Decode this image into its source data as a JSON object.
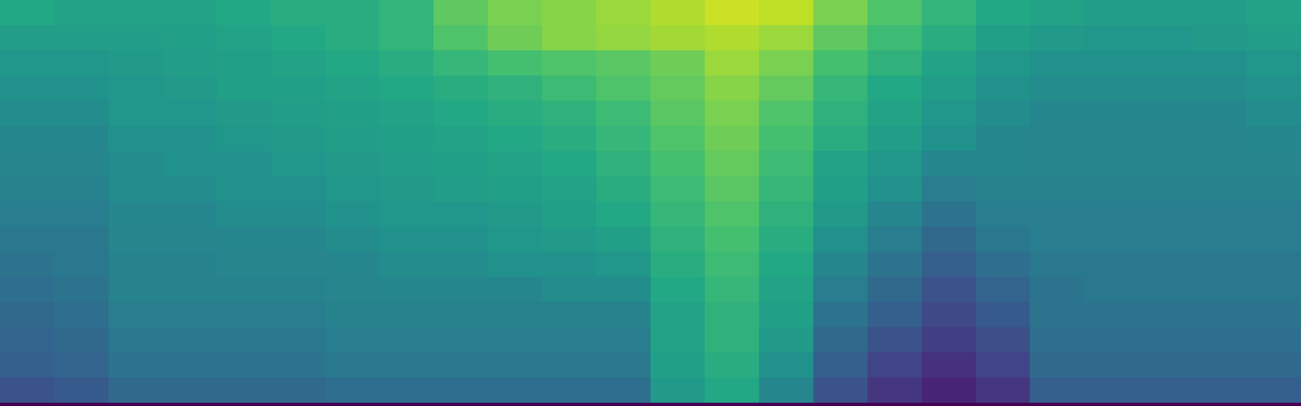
{
  "chart_data": {
    "type": "heatmap",
    "color": "viridis",
    "zlim": [
      0,
      100
    ],
    "tick_labels": false,
    "cells": [
      [
        60,
        58,
        58,
        58,
        60,
        62,
        62,
        65,
        75,
        80,
        82,
        85,
        88,
        92,
        90,
        80,
        72,
        65,
        60,
        58,
        55,
        55,
        55,
        58
      ],
      [
        55,
        55,
        55,
        56,
        58,
        60,
        62,
        65,
        72,
        78,
        82,
        84,
        86,
        88,
        85,
        75,
        68,
        62,
        56,
        54,
        52,
        52,
        54,
        55
      ],
      [
        52,
        52,
        54,
        55,
        56,
        58,
        60,
        62,
        66,
        70,
        72,
        74,
        78,
        85,
        80,
        70,
        64,
        58,
        52,
        50,
        50,
        50,
        50,
        52
      ],
      [
        50,
        50,
        52,
        54,
        56,
        56,
        58,
        60,
        62,
        64,
        68,
        72,
        76,
        82,
        76,
        66,
        60,
        55,
        50,
        48,
        48,
        48,
        48,
        50
      ],
      [
        48,
        48,
        52,
        52,
        54,
        55,
        56,
        58,
        60,
        62,
        64,
        68,
        74,
        80,
        72,
        64,
        58,
        52,
        48,
        46,
        46,
        46,
        46,
        48
      ],
      [
        46,
        46,
        50,
        50,
        52,
        54,
        55,
        56,
        58,
        60,
        62,
        66,
        72,
        78,
        70,
        62,
        55,
        50,
        46,
        45,
        45,
        45,
        45,
        46
      ],
      [
        45,
        45,
        48,
        50,
        50,
        52,
        54,
        55,
        56,
        58,
        60,
        64,
        70,
        76,
        68,
        58,
        52,
        46,
        46,
        45,
        45,
        45,
        45,
        45
      ],
      [
        44,
        44,
        48,
        48,
        50,
        50,
        52,
        54,
        55,
        56,
        58,
        62,
        68,
        74,
        66,
        56,
        50,
        42,
        44,
        44,
        44,
        44,
        44,
        44
      ],
      [
        42,
        42,
        46,
        46,
        48,
        48,
        50,
        52,
        52,
        54,
        56,
        60,
        66,
        72,
        64,
        54,
        46,
        38,
        42,
        42,
        42,
        42,
        42,
        42
      ],
      [
        40,
        40,
        45,
        45,
        46,
        46,
        48,
        50,
        50,
        52,
        54,
        56,
        64,
        70,
        62,
        50,
        42,
        34,
        40,
        42,
        42,
        42,
        42,
        42
      ],
      [
        38,
        40,
        44,
        44,
        45,
        45,
        46,
        48,
        48,
        50,
        50,
        52,
        62,
        68,
        60,
        46,
        38,
        30,
        36,
        40,
        40,
        40,
        40,
        40
      ],
      [
        36,
        38,
        44,
        44,
        44,
        44,
        45,
        46,
        46,
        46,
        48,
        48,
        60,
        66,
        58,
        42,
        34,
        26,
        32,
        38,
        40,
        40,
        40,
        40
      ],
      [
        34,
        36,
        42,
        42,
        42,
        42,
        44,
        44,
        44,
        44,
        44,
        44,
        58,
        64,
        56,
        38,
        30,
        22,
        28,
        38,
        38,
        38,
        38,
        38
      ],
      [
        32,
        34,
        40,
        40,
        40,
        40,
        42,
        42,
        42,
        42,
        42,
        42,
        58,
        64,
        54,
        34,
        26,
        18,
        24,
        36,
        36,
        36,
        36,
        36
      ],
      [
        30,
        32,
        38,
        38,
        38,
        38,
        40,
        40,
        40,
        40,
        40,
        40,
        56,
        62,
        50,
        30,
        20,
        14,
        20,
        34,
        34,
        34,
        34,
        34
      ],
      [
        26,
        28,
        34,
        34,
        34,
        34,
        36,
        36,
        36,
        36,
        36,
        36,
        54,
        60,
        46,
        26,
        16,
        10,
        16,
        30,
        30,
        30,
        30,
        30
      ]
    ]
  }
}
